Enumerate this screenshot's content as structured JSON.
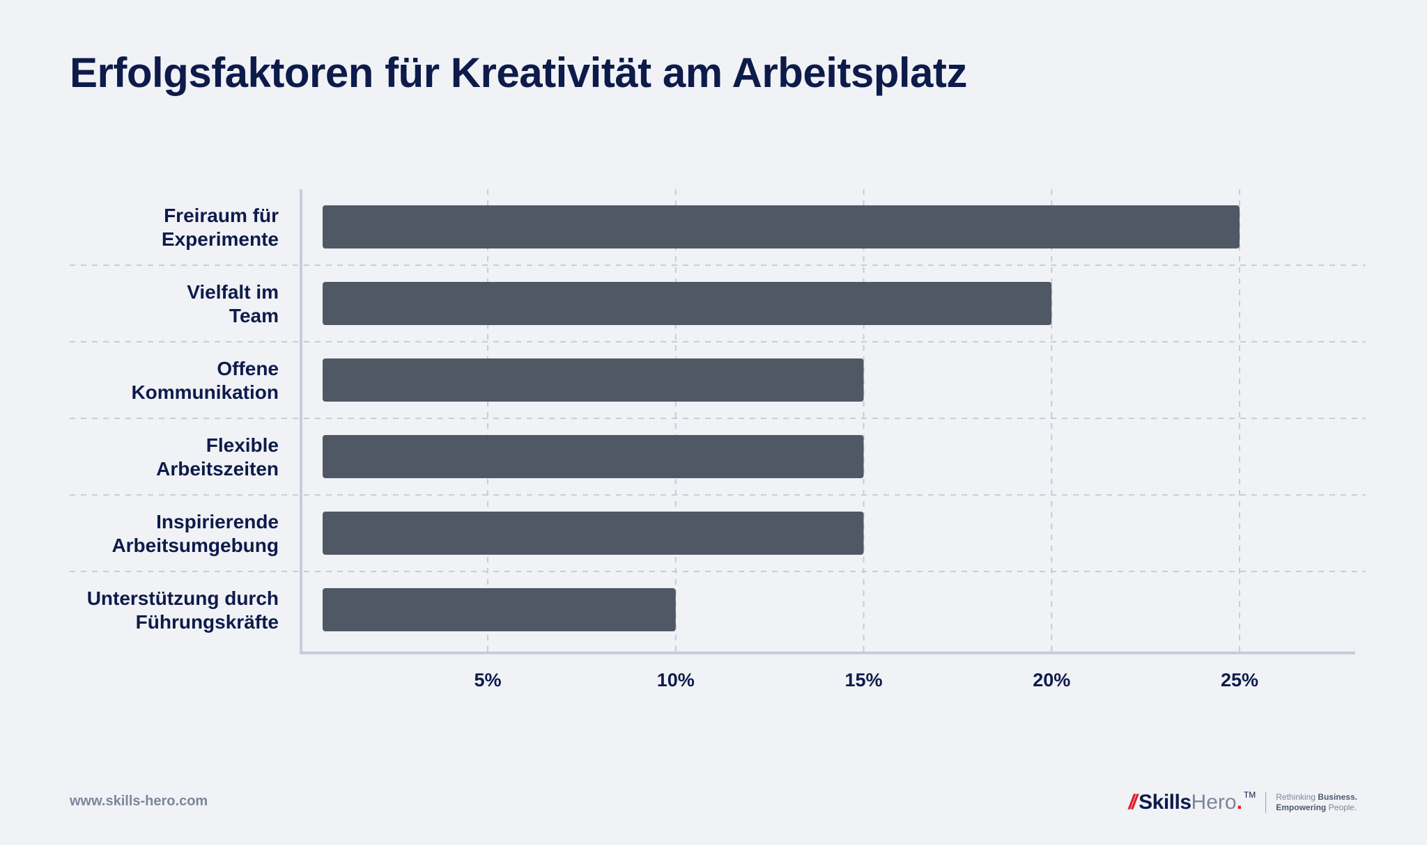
{
  "header": {
    "title": "Erfolgsfaktoren für Kreativität am Arbeitsplatz"
  },
  "chart_data": {
    "type": "bar",
    "orientation": "horizontal",
    "title": "Erfolgsfaktoren für Kreativität am Arbeitsplatz",
    "categories": [
      [
        "Freiraum für",
        "Experimente"
      ],
      [
        "Vielfalt im",
        "Team"
      ],
      [
        "Offene",
        "Kommunikation"
      ],
      [
        "Flexible",
        "Arbeitszeiten"
      ],
      [
        "Inspirierende",
        "Arbeitsumgebung"
      ],
      [
        "Unterstützung durch",
        "Führungskräfte"
      ]
    ],
    "values": [
      25,
      20,
      15,
      15,
      15,
      10
    ],
    "xticks": [
      5,
      10,
      15,
      20,
      25
    ],
    "xtick_labels": [
      "5%",
      "10%",
      "15%",
      "20%",
      "25%"
    ],
    "xlim": [
      0,
      28
    ],
    "xlabel": "",
    "ylabel": "",
    "grid": true,
    "bar_color": "#4f5864",
    "axis_color": "#c9ccd8",
    "text_color": "#0d1b4b"
  },
  "footer": {
    "url": "www.skills-hero.com",
    "brand_slash": "//",
    "brand_skills": "Skills",
    "brand_hero": "Hero",
    "brand_dot": ".",
    "brand_tm": "TM",
    "tagline_line1_prefix": "Rethinking ",
    "tagline_line1_bold": "Business.",
    "tagline_line2_bold": "Empowering",
    "tagline_line2_suffix": " People."
  }
}
